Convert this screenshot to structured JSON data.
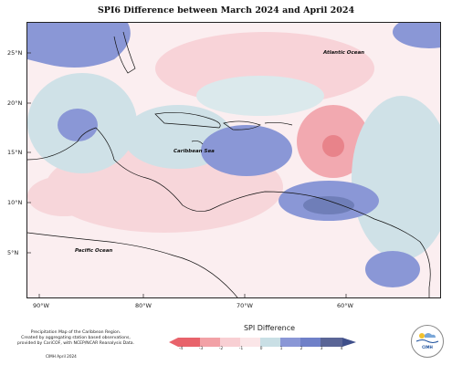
{
  "title": "SPI6 Difference between March 2024 and April 2024",
  "map": {
    "lat_labels": [
      "25°N",
      "20°N",
      "15°N",
      "10°N",
      "5°N"
    ],
    "lon_labels": [
      "90°W",
      "80°W",
      "70°W",
      "60°W"
    ],
    "labels": {
      "atlantic": "Atlantic Ocean",
      "caribbean": "Caribbean Sea",
      "pacific": "Pacific Ocean"
    }
  },
  "legend": {
    "title": "SPI Difference",
    "ticks": [
      "-4",
      "-3",
      "-2",
      "-1",
      "0",
      "1",
      "2",
      "3",
      "4"
    ],
    "colors": [
      "#e8636b",
      "#f2a1a6",
      "#f8cfd3",
      "#fbe6e8",
      "#c9dfe5",
      "#8a97d6",
      "#6f80c8",
      "#5a6596",
      "#3f4f8a"
    ]
  },
  "credit": {
    "lines": [
      "Precipitation Map of the Caribbean Region.",
      "Created by aggregating station based observations,",
      "provided by CariCOF, with NCEP/NCAR Reanalysis Data."
    ],
    "footer": "CIMH April 2024"
  },
  "logo": {
    "text": "CIMH"
  }
}
